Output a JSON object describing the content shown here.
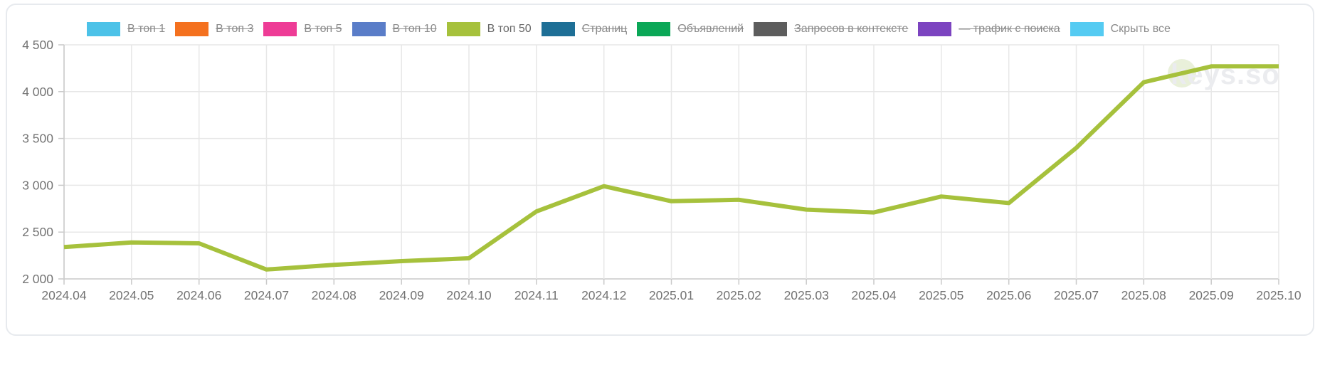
{
  "card": {
    "background": "#ffffff",
    "border_color": "#e7eaee"
  },
  "legend": {
    "items": [
      {
        "key": "top1",
        "label": "В топ 1",
        "color": "#4cc2e8",
        "struck": true,
        "active": false
      },
      {
        "key": "top3",
        "label": "В топ 3",
        "color": "#f4711f",
        "struck": true,
        "active": false
      },
      {
        "key": "top5",
        "label": "В топ 5",
        "color": "#ee3c96",
        "struck": true,
        "active": false
      },
      {
        "key": "top10",
        "label": "В топ 10",
        "color": "#5a7dc8",
        "struck": true,
        "active": false
      },
      {
        "key": "top50",
        "label": "В топ 50",
        "color": "#a6c13c",
        "struck": false,
        "active": true
      },
      {
        "key": "pages",
        "label": "Страниц",
        "color": "#1e6f96",
        "struck": true,
        "active": false
      },
      {
        "key": "ads",
        "label": "Объявлений",
        "color": "#0ba757",
        "struck": true,
        "active": false
      },
      {
        "key": "context-queries",
        "label": "Запросов в контексте",
        "color": "#5d5d5d",
        "struck": true,
        "active": false
      },
      {
        "key": "search-traffic",
        "label": "— трафик с поиска",
        "color": "#7c44c0",
        "struck": true,
        "active": false
      },
      {
        "key": "hide-all",
        "label": "Скрыть все",
        "color": "#55cbf2",
        "struck": false,
        "active": false
      }
    ]
  },
  "watermark": {
    "text": "keys.so",
    "text_color": "#ebecef",
    "circle_color": "#e9f0da"
  },
  "chart_data": {
    "type": "line",
    "x": [
      "2024.04",
      "2024.05",
      "2024.06",
      "2024.07",
      "2024.08",
      "2024.09",
      "2024.10",
      "2024.11",
      "2024.12",
      "2025.01",
      "2025.02",
      "2025.03",
      "2025.04",
      "2025.05",
      "2025.06",
      "2025.07",
      "2025.08",
      "2025.09",
      "2025.10"
    ],
    "series": [
      {
        "name": "В топ 50",
        "color": "#a6c13c",
        "values": [
          2340,
          2390,
          2380,
          2100,
          2150,
          2190,
          2220,
          2720,
          2990,
          2830,
          2845,
          2740,
          2710,
          2880,
          2810,
          3400,
          4100,
          4270,
          4270
        ]
      }
    ],
    "ylim": [
      2000,
      4500
    ],
    "ytick_step": 500,
    "ytick_labels": [
      "2 000",
      "2 500",
      "3 000",
      "3 500",
      "4 000",
      "4 500"
    ],
    "grid": true,
    "legend_position": "top",
    "axis_color": "#c9c9c9",
    "grid_color": "#e7e7e7",
    "tick_label_color": "#737373"
  }
}
